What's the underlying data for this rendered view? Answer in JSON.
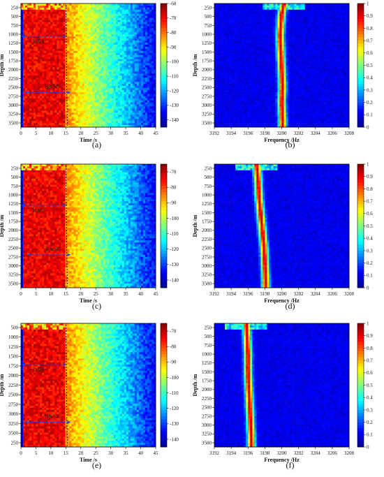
{
  "figure": {
    "captions": [
      "(a)",
      "(b)",
      "(c)",
      "(d)",
      "(e)",
      "(f)"
    ]
  },
  "colors": {
    "colormap": [
      "#00008f",
      "#0000ff",
      "#0080ff",
      "#00ffff",
      "#80ff80",
      "#ffff00",
      "#ff8000",
      "#ff0000",
      "#800000"
    ],
    "annotation_arrow": "#2b3fd6",
    "annotation_dash": "#000000"
  },
  "chart_data": [
    {
      "id": "a",
      "type": "heatmap",
      "xlabel": "Time /s",
      "ylabel": "Depth /m",
      "xlim": [
        0,
        45
      ],
      "ylim": [
        3750,
        0
      ],
      "x_ticks": [
        "0",
        "5",
        "10",
        "15",
        "20",
        "25",
        "30",
        "35",
        "40",
        "45"
      ],
      "y_ticks": [
        "250",
        "500",
        "750",
        "1000",
        "1250",
        "1500",
        "1750",
        "2000",
        "2250",
        "2500",
        "2750",
        "3000",
        "3250",
        "3500"
      ],
      "colorbar": {
        "range": [
          -145,
          -60
        ],
        "ticks": [
          "-60",
          "-70",
          "-80",
          "-90",
          "-100",
          "-110",
          "-120",
          "-130",
          "-140"
        ]
      },
      "annotations": [
        {
          "label": "D&S",
          "x_start": 0,
          "x_end": 15,
          "depth": 1000
        },
        {
          "label": "B&SB",
          "x_start": 1,
          "x_end": 16.5,
          "depth": 2700
        }
      ],
      "boundary_time_s": 15
    },
    {
      "id": "b",
      "type": "heatmap",
      "xlabel": "Frequency /Hz",
      "ylabel": "Depth /m",
      "xlim": [
        3192,
        3208
      ],
      "ylim": [
        3750,
        0
      ],
      "x_ticks": [
        "3192",
        "3194",
        "3196",
        "3198",
        "3200",
        "3202",
        "3204",
        "3206",
        "3208"
      ],
      "y_ticks": [
        "250",
        "500",
        "750",
        "1000",
        "1250",
        "1500",
        "1750",
        "2000",
        "2250",
        "2500",
        "2750",
        "3000",
        "3250",
        "3500"
      ],
      "colorbar": {
        "range": [
          0,
          1
        ],
        "ticks": [
          "0",
          "0.1",
          "0.2",
          "0.3",
          "0.4",
          "0.5",
          "0.6",
          "0.7",
          "0.8",
          "0.9",
          "1"
        ]
      },
      "ridge": [
        [
          0,
          3200.3
        ],
        [
          300,
          3200.0
        ],
        [
          600,
          3199.9
        ],
        [
          1000,
          3199.8
        ],
        [
          1500,
          3199.9
        ],
        [
          2000,
          3200.0
        ],
        [
          2500,
          3200.1
        ],
        [
          3000,
          3200.0
        ],
        [
          3500,
          3200.1
        ],
        [
          3700,
          3200.1
        ]
      ]
    },
    {
      "id": "c",
      "type": "heatmap",
      "xlabel": "Time /s",
      "ylabel": "Depth /m",
      "xlim": [
        0,
        45
      ],
      "ylim": [
        3750,
        0
      ],
      "x_ticks": [
        "0",
        "5",
        "10",
        "15",
        "20",
        "25",
        "30",
        "35",
        "40",
        "45"
      ],
      "y_ticks": [
        "250",
        "500",
        "750",
        "1000",
        "1250",
        "1500",
        "1750",
        "2000",
        "2250",
        "2500",
        "2750",
        "3000",
        "3250",
        "3500"
      ],
      "colorbar": {
        "range": [
          -145,
          -65
        ],
        "ticks": [
          "-70",
          "-80",
          "-90",
          "-100",
          "-110",
          "-120",
          "-130",
          "-140"
        ]
      },
      "annotations": [
        {
          "label": "D&S",
          "x_start": 0,
          "x_end": 15,
          "depth": 1250
        },
        {
          "label": "B&SB",
          "x_start": 2,
          "x_end": 16.5,
          "depth": 2750
        }
      ],
      "boundary_time_s": 15
    },
    {
      "id": "d",
      "type": "heatmap",
      "xlabel": "Frequency /Hz",
      "ylabel": "Depth /m",
      "xlim": [
        3192,
        3208
      ],
      "ylim": [
        3750,
        0
      ],
      "x_ticks": [
        "3192",
        "3194",
        "3196",
        "3198",
        "3200",
        "3202",
        "3204",
        "3206",
        "3208"
      ],
      "y_ticks": [
        "250",
        "500",
        "750",
        "1000",
        "1250",
        "1500",
        "1750",
        "2000",
        "2250",
        "2500",
        "2750",
        "3000",
        "3250",
        "3500"
      ],
      "colorbar": {
        "range": [
          0,
          1
        ],
        "ticks": [
          "0",
          "0.1",
          "0.2",
          "0.3",
          "0.4",
          "0.5",
          "0.6",
          "0.7",
          "0.8",
          "0.9",
          "1"
        ]
      },
      "ridge": [
        [
          0,
          3197.0
        ],
        [
          250,
          3197.1
        ],
        [
          500,
          3197.2
        ],
        [
          1000,
          3197.3
        ],
        [
          1500,
          3197.5
        ],
        [
          2000,
          3197.7
        ],
        [
          2500,
          3197.9
        ],
        [
          3000,
          3198.0
        ],
        [
          3500,
          3198.1
        ],
        [
          3700,
          3198.1
        ]
      ]
    },
    {
      "id": "e",
      "type": "heatmap",
      "xlabel": "Time /s",
      "ylabel": "Depth /m",
      "xlim": [
        0,
        45
      ],
      "ylim": [
        3750,
        250
      ],
      "x_ticks": [
        "0",
        "5",
        "10",
        "15",
        "20",
        "25",
        "30",
        "35",
        "40",
        "45"
      ],
      "y_ticks": [
        "500",
        "1000",
        "1250",
        "1500",
        "1750",
        "2000",
        "2250",
        "2500",
        "2750",
        "3000",
        "3250",
        "3500",
        "250"
      ],
      "colorbar": {
        "range": [
          -145,
          -65
        ],
        "ticks": [
          "-70",
          "-80",
          "-90",
          "-100",
          "-110",
          "-120",
          "-130",
          "-140"
        ]
      },
      "annotations": [
        {
          "label": "D&S",
          "x_start": 0,
          "x_end": 15,
          "depth": 1250
        },
        {
          "label": "B&SB",
          "x_start": 1,
          "x_end": 16.5,
          "depth": 3000
        }
      ],
      "boundary_time_s": 15
    },
    {
      "id": "f",
      "type": "heatmap",
      "xlabel": "Frequency /Hz",
      "ylabel": "Depth /m",
      "xlim": [
        3192,
        3208
      ],
      "ylim": [
        3750,
        0
      ],
      "x_ticks": [
        "3192",
        "3194",
        "3196",
        "3198",
        "3200",
        "3202",
        "3204",
        "3206",
        "3208"
      ],
      "y_ticks": [
        "250",
        "500",
        "750",
        "1000",
        "1250",
        "1500",
        "1750",
        "2000",
        "2250",
        "2500",
        "2750",
        "3000",
        "3250",
        "3500"
      ],
      "colorbar": {
        "range": [
          0,
          1
        ],
        "ticks": [
          "0",
          "0.1",
          "0.2",
          "0.3",
          "0.4",
          "0.5",
          "0.6",
          "0.7",
          "0.8",
          "0.9",
          "1"
        ]
      },
      "ridge": [
        [
          0,
          3195.8
        ],
        [
          500,
          3195.9
        ],
        [
          1000,
          3196.0
        ],
        [
          1500,
          3196.0
        ],
        [
          2000,
          3196.1
        ],
        [
          2500,
          3196.2
        ],
        [
          3000,
          3196.3
        ],
        [
          3500,
          3196.4
        ],
        [
          3700,
          3196.4
        ]
      ]
    }
  ]
}
